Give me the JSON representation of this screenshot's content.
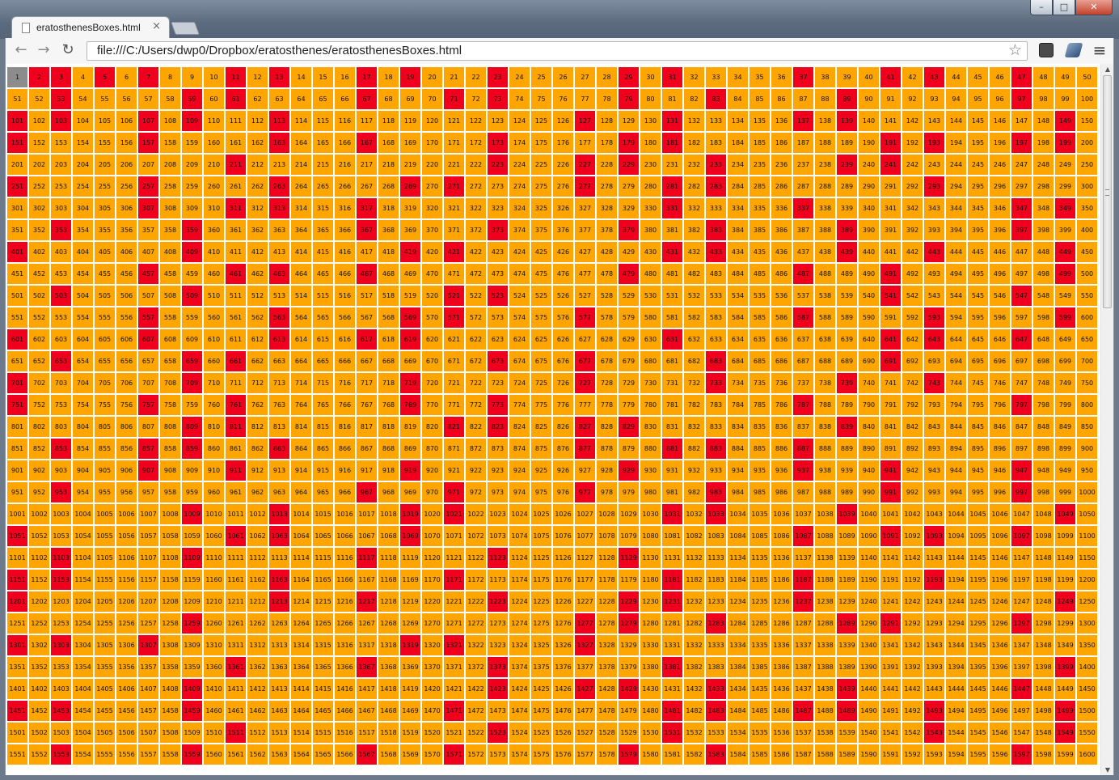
{
  "window": {
    "minimize_label": "–",
    "maximize_label": "□",
    "close_label": "✕"
  },
  "tab": {
    "title": "eratosthenesBoxes.html",
    "close_label": "×",
    "favicon": "page-icon"
  },
  "toolbar": {
    "back_icon": "←",
    "forward_icon": "→",
    "reload_icon": "↻",
    "menu_icon": "≡",
    "url": "file:///C:/Users/dwp0/Dropbox/eratosthenes/eratosthenesBoxes.html",
    "star_icon": "☆"
  },
  "grid": {
    "columns": 50,
    "start": 1,
    "end": 1600,
    "colors": {
      "composite": "#ffa500",
      "prime": "#f0001c",
      "one": "#8c8c8c"
    }
  }
}
